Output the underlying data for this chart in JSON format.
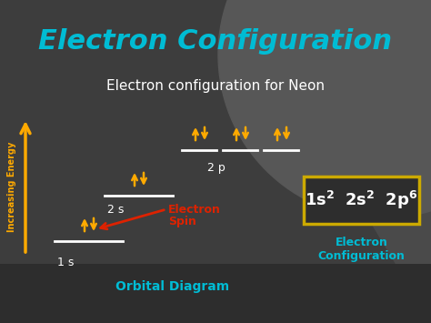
{
  "title": "Electron Configuration",
  "subtitle": "Electron configuration for Neon",
  "bg_color": "#3d3d3d",
  "bg_dark": "#2a2a2a",
  "bg_light": "#555555",
  "title_color": "#00bcd4",
  "subtitle_color": "#ffffff",
  "arrow_color": "#ffaa00",
  "white_color": "#ffffff",
  "red_color": "#dd2200",
  "cyan_color": "#00bcd4",
  "box_edge_color": "#ccaa00",
  "box_face_color": "#2d2d2d",
  "ylabel": "Increasing Energy",
  "ylabel_color": "#ffaa00",
  "orbital_label": "Orbital Diagram",
  "config_label_line1": "Electron",
  "config_label_line2": "Configuration",
  "electron_spin_label_line1": "Electron",
  "electron_spin_label_line2": "Spin",
  "updown_char": "⇅",
  "fig_width": 4.74,
  "fig_height": 3.55,
  "dpi": 100
}
